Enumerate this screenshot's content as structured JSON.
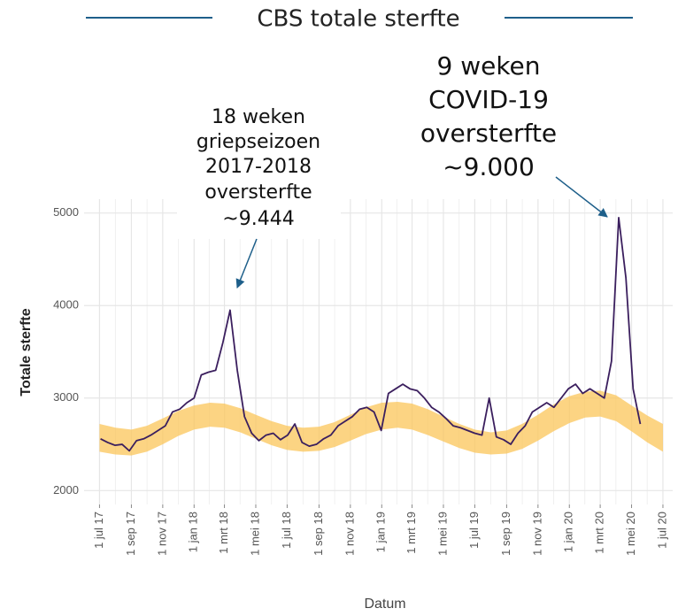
{
  "chart_data": {
    "type": "line",
    "title": "CBS totale sterfte",
    "x_label": "Datum",
    "y_label": "Totale sterfte",
    "ylim": [
      1850,
      5150
    ],
    "yticks": [
      2000,
      3000,
      4000,
      5000
    ],
    "xlim": [
      "2017-06-01",
      "2020-07-20"
    ],
    "xticks": [
      {
        "value": "2017-07-01",
        "label": "1 jul 17"
      },
      {
        "value": "2017-09-01",
        "label": "1 sep 17"
      },
      {
        "value": "2017-11-01",
        "label": "1 nov 17"
      },
      {
        "value": "2018-01-01",
        "label": "1 jan 18"
      },
      {
        "value": "2018-03-01",
        "label": "1 mrt 18"
      },
      {
        "value": "2018-05-01",
        "label": "1 mei 18"
      },
      {
        "value": "2018-07-01",
        "label": "1 jul 18"
      },
      {
        "value": "2018-09-01",
        "label": "1 sep 18"
      },
      {
        "value": "2018-11-01",
        "label": "1 nov 18"
      },
      {
        "value": "2019-01-01",
        "label": "1 jan 19"
      },
      {
        "value": "2019-03-01",
        "label": "1 mrt 19"
      },
      {
        "value": "2019-05-01",
        "label": "1 mei 19"
      },
      {
        "value": "2019-07-01",
        "label": "1 jul 19"
      },
      {
        "value": "2019-09-01",
        "label": "1 sep 19"
      },
      {
        "value": "2019-11-01",
        "label": "1 nov 19"
      },
      {
        "value": "2020-01-01",
        "label": "1 jan 20"
      },
      {
        "value": "2020-03-01",
        "label": "1 mrt 20"
      },
      {
        "value": "2020-05-01",
        "label": "1 mei 20"
      },
      {
        "value": "2020-07-01",
        "label": "1 jul 20"
      }
    ],
    "grid": true,
    "x": [
      "2017-07-03",
      "2017-07-17",
      "2017-07-31",
      "2017-08-14",
      "2017-08-28",
      "2017-09-11",
      "2017-09-25",
      "2017-10-09",
      "2017-10-23",
      "2017-11-06",
      "2017-11-20",
      "2017-12-04",
      "2017-12-18",
      "2018-01-01",
      "2018-01-15",
      "2018-01-29",
      "2018-02-12",
      "2018-02-26",
      "2018-03-12",
      "2018-03-26",
      "2018-04-09",
      "2018-04-23",
      "2018-05-07",
      "2018-05-21",
      "2018-06-04",
      "2018-06-18",
      "2018-07-02",
      "2018-07-16",
      "2018-07-30",
      "2018-08-13",
      "2018-08-27",
      "2018-09-10",
      "2018-09-24",
      "2018-10-08",
      "2018-10-22",
      "2018-11-05",
      "2018-11-19",
      "2018-12-03",
      "2018-12-17",
      "2018-12-31",
      "2019-01-14",
      "2019-01-28",
      "2019-02-11",
      "2019-02-25",
      "2019-03-11",
      "2019-03-25",
      "2019-04-08",
      "2019-04-22",
      "2019-05-06",
      "2019-05-20",
      "2019-06-03",
      "2019-06-17",
      "2019-07-01",
      "2019-07-15",
      "2019-07-29",
      "2019-08-12",
      "2019-08-26",
      "2019-09-09",
      "2019-09-23",
      "2019-10-07",
      "2019-10-21",
      "2019-11-04",
      "2019-11-18",
      "2019-12-02",
      "2019-12-16",
      "2019-12-30",
      "2020-01-13",
      "2020-01-27",
      "2020-02-10",
      "2020-02-24",
      "2020-03-09",
      "2020-03-23",
      "2020-04-06",
      "2020-04-20",
      "2020-05-04",
      "2020-05-18"
    ],
    "series": [
      {
        "color": "#3b1f5e",
        "values": [
          2560,
          2520,
          2490,
          2500,
          2430,
          2540,
          2560,
          2600,
          2650,
          2700,
          2850,
          2880,
          2950,
          3000,
          3250,
          3280,
          3300,
          3600,
          3950,
          3300,
          2800,
          2620,
          2540,
          2600,
          2620,
          2550,
          2600,
          2720,
          2520,
          2480,
          2500,
          2560,
          2600,
          2700,
          2750,
          2800,
          2880,
          2900,
          2850,
          2650,
          3050,
          3100,
          3150,
          3100,
          3080,
          3000,
          2900,
          2850,
          2780,
          2700,
          2680,
          2650,
          2620,
          2600,
          3000,
          2580,
          2550,
          2500,
          2620,
          2700,
          2850,
          2900,
          2950,
          2900,
          3000,
          3100,
          3150,
          3050,
          3100,
          3050,
          3000,
          3400,
          4950,
          4300,
          3100,
          2720
        ]
      }
    ],
    "band": {
      "color": "#fbc55a",
      "x": [
        "2017-07-01",
        "2017-08-01",
        "2017-09-01",
        "2017-10-01",
        "2017-11-01",
        "2017-12-01",
        "2018-01-01",
        "2018-02-01",
        "2018-03-01",
        "2018-04-01",
        "2018-05-01",
        "2018-06-01",
        "2018-07-01",
        "2018-08-01",
        "2018-09-01",
        "2018-10-01",
        "2018-11-01",
        "2018-12-01",
        "2019-01-01",
        "2019-02-01",
        "2019-03-01",
        "2019-04-01",
        "2019-05-01",
        "2019-06-01",
        "2019-07-01",
        "2019-08-01",
        "2019-09-01",
        "2019-10-01",
        "2019-11-01",
        "2019-12-01",
        "2020-01-01",
        "2020-02-01",
        "2020-03-01",
        "2020-04-01",
        "2020-05-01",
        "2020-06-01",
        "2020-07-01"
      ],
      "upper": [
        2720,
        2680,
        2660,
        2700,
        2780,
        2860,
        2920,
        2950,
        2940,
        2890,
        2820,
        2750,
        2700,
        2680,
        2690,
        2740,
        2820,
        2900,
        2950,
        2960,
        2940,
        2880,
        2800,
        2720,
        2660,
        2630,
        2650,
        2720,
        2820,
        2930,
        3020,
        3070,
        3080,
        3030,
        2920,
        2810,
        2720
      ],
      "lower": [
        2420,
        2390,
        2380,
        2420,
        2500,
        2590,
        2660,
        2690,
        2680,
        2630,
        2560,
        2490,
        2440,
        2420,
        2430,
        2470,
        2540,
        2610,
        2660,
        2680,
        2660,
        2600,
        2530,
        2460,
        2410,
        2390,
        2400,
        2450,
        2540,
        2640,
        2730,
        2790,
        2800,
        2750,
        2640,
        2520,
        2420
      ]
    },
    "annotations": [
      {
        "lines": [
          "18 weken",
          "griepseizoen",
          "2017-2018",
          "oversterfte",
          "~9.444"
        ]
      },
      {
        "lines": [
          "9 weken",
          "COVID-19",
          "oversterfte",
          "~9.000"
        ]
      }
    ]
  }
}
